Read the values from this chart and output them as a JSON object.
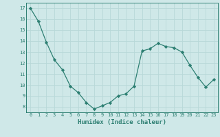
{
  "x": [
    0,
    1,
    2,
    3,
    4,
    5,
    6,
    7,
    8,
    9,
    10,
    11,
    12,
    13,
    14,
    15,
    16,
    17,
    18,
    19,
    20,
    21,
    22,
    23
  ],
  "y": [
    17.0,
    15.8,
    13.9,
    12.3,
    11.4,
    9.9,
    9.3,
    8.4,
    7.8,
    8.1,
    8.4,
    9.0,
    9.2,
    9.9,
    13.1,
    13.3,
    13.8,
    13.5,
    13.4,
    13.0,
    11.8,
    10.7,
    9.8,
    10.5
  ],
  "xlim": [
    -0.5,
    23.5
  ],
  "ylim": [
    7.5,
    17.5
  ],
  "yticks": [
    8,
    9,
    10,
    11,
    12,
    13,
    14,
    15,
    16,
    17
  ],
  "xticks": [
    0,
    1,
    2,
    3,
    4,
    5,
    6,
    7,
    8,
    9,
    10,
    11,
    12,
    13,
    14,
    15,
    16,
    17,
    18,
    19,
    20,
    21,
    22,
    23
  ],
  "xlabel": "Humidex (Indice chaleur)",
  "line_color": "#2d7f72",
  "marker": "D",
  "marker_size": 2.2,
  "bg_color": "#cfe8e8",
  "grid_color_major": "#b8d8d8",
  "grid_color_minor": "#d5eaea",
  "axis_color": "#2d7f72",
  "tick_color": "#2d7f72",
  "label_color": "#2d7f72",
  "tick_fontsize": 5.0,
  "xlabel_fontsize": 6.5
}
